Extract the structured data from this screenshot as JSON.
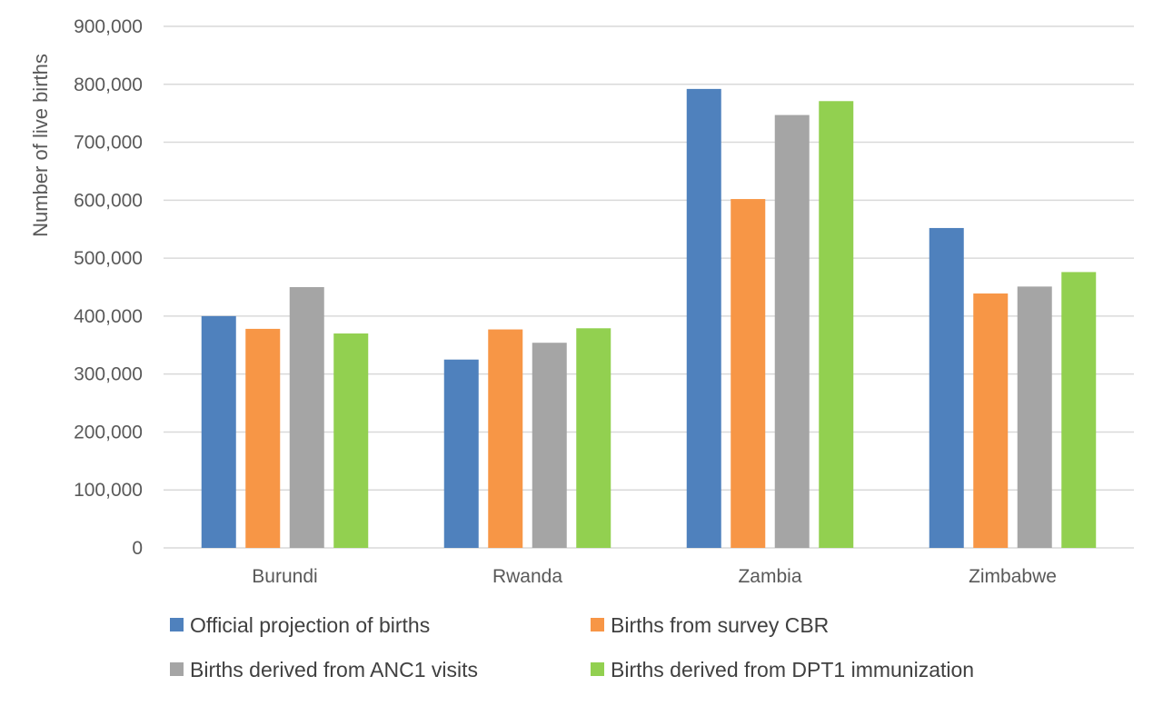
{
  "chart_data": {
    "type": "bar",
    "title": "",
    "xlabel": "",
    "ylabel": "Number of live births",
    "ylim": [
      0,
      900000
    ],
    "y_ticks": [
      {
        "value": 0,
        "label": "0"
      },
      {
        "value": 100000,
        "label": "100,000"
      },
      {
        "value": 200000,
        "label": "200,000"
      },
      {
        "value": 300000,
        "label": "300,000"
      },
      {
        "value": 400000,
        "label": "400,000"
      },
      {
        "value": 500000,
        "label": "500,000"
      },
      {
        "value": 600000,
        "label": "600,000"
      },
      {
        "value": 700000,
        "label": "700,000"
      },
      {
        "value": 800000,
        "label": "800,000"
      },
      {
        "value": 900000,
        "label": "900,000"
      }
    ],
    "grid": true,
    "legend_position": "bottom",
    "categories": [
      "Burundi",
      "Rwanda",
      "Zambia",
      "Zimbabwe"
    ],
    "series": [
      {
        "name": "Official projection of births",
        "color": "#4F81BD",
        "values": [
          400000,
          325000,
          792000,
          552000
        ]
      },
      {
        "name": "Births from survey CBR",
        "color": "#F79646",
        "values": [
          378000,
          377000,
          602000,
          439000
        ]
      },
      {
        "name": "Births derived from ANC1 visits",
        "color": "#A5A5A5",
        "values": [
          450000,
          354000,
          747000,
          451000
        ]
      },
      {
        "name": "Births derived from DPT1 immunization",
        "color": "#92D050",
        "values": [
          370000,
          379000,
          771000,
          476000
        ]
      }
    ]
  },
  "colors": {
    "gridline": "#D9D9D9",
    "axis_text": "#595959",
    "legend_text": "#404040"
  }
}
